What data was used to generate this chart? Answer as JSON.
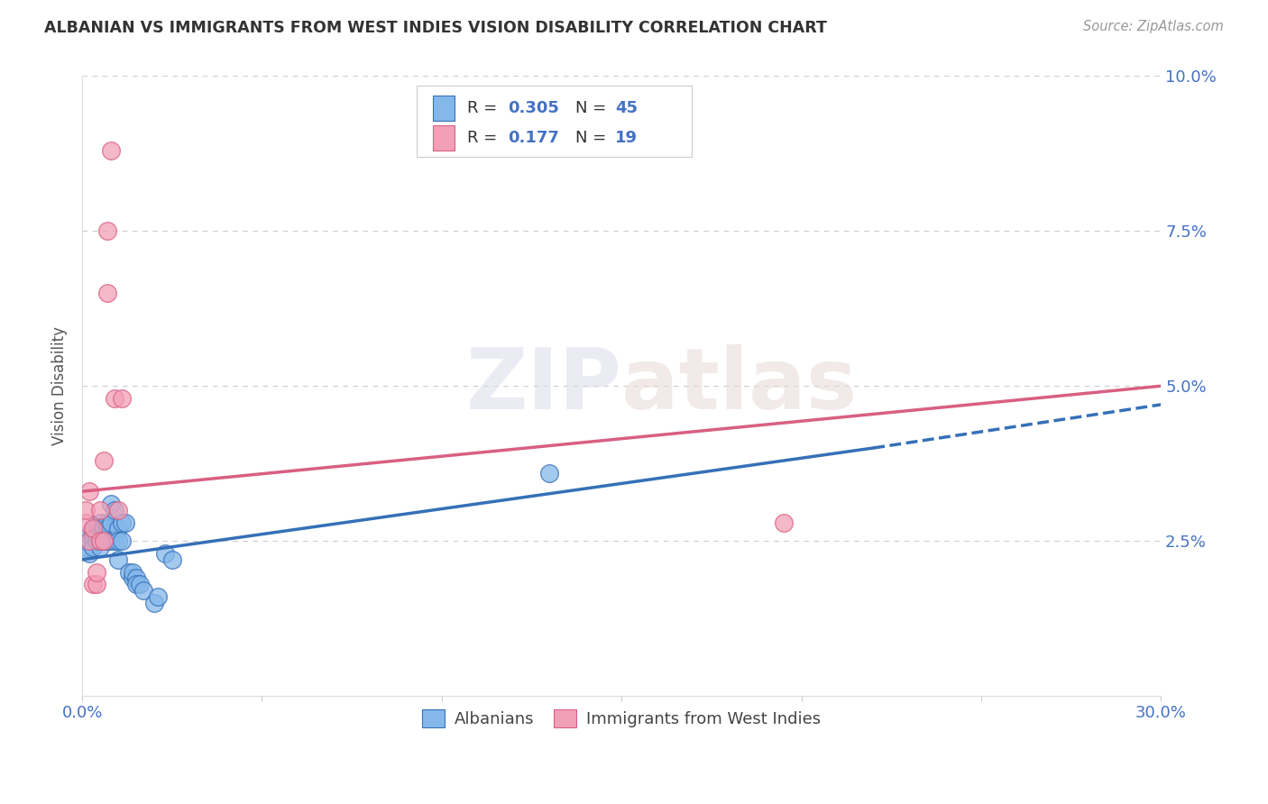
{
  "title": "ALBANIAN VS IMMIGRANTS FROM WEST INDIES VISION DISABILITY CORRELATION CHART",
  "source": "Source: ZipAtlas.com",
  "ylabel": "Vision Disability",
  "xlim": [
    0,
    0.3
  ],
  "ylim": [
    0,
    0.1
  ],
  "legend_R1": "0.305",
  "legend_N1": "45",
  "legend_R2": "0.177",
  "legend_N2": "19",
  "color_albanians": "#85B8EA",
  "color_west_indies": "#F2A0B8",
  "color_line_albanians": "#3570B8",
  "color_line_west_indies": "#D95F82",
  "background_color": "#FFFFFF",
  "watermark_zip": "ZIP",
  "watermark_atlas": "atlas",
  "legend_label1": "Albanians",
  "legend_label2": "Immigrants from West Indies",
  "albanians_x": [
    0.001,
    0.002,
    0.002,
    0.002,
    0.003,
    0.003,
    0.003,
    0.003,
    0.004,
    0.004,
    0.004,
    0.005,
    0.005,
    0.005,
    0.005,
    0.006,
    0.006,
    0.006,
    0.007,
    0.007,
    0.007,
    0.007,
    0.008,
    0.008,
    0.008,
    0.009,
    0.009,
    0.01,
    0.01,
    0.01,
    0.011,
    0.011,
    0.012,
    0.013,
    0.014,
    0.014,
    0.015,
    0.015,
    0.016,
    0.017,
    0.02,
    0.021,
    0.023,
    0.025,
    0.13
  ],
  "albanians_y": [
    0.024,
    0.026,
    0.025,
    0.023,
    0.026,
    0.025,
    0.027,
    0.024,
    0.025,
    0.027,
    0.026,
    0.024,
    0.027,
    0.025,
    0.028,
    0.025,
    0.027,
    0.025,
    0.026,
    0.025,
    0.028,
    0.027,
    0.025,
    0.031,
    0.028,
    0.025,
    0.03,
    0.027,
    0.025,
    0.022,
    0.028,
    0.025,
    0.028,
    0.02,
    0.019,
    0.02,
    0.019,
    0.018,
    0.018,
    0.017,
    0.015,
    0.016,
    0.023,
    0.022,
    0.036
  ],
  "west_indies_x": [
    0.001,
    0.001,
    0.002,
    0.002,
    0.003,
    0.003,
    0.004,
    0.004,
    0.005,
    0.005,
    0.006,
    0.006,
    0.007,
    0.007,
    0.008,
    0.009,
    0.01,
    0.011,
    0.195
  ],
  "west_indies_y": [
    0.028,
    0.03,
    0.033,
    0.025,
    0.027,
    0.018,
    0.018,
    0.02,
    0.025,
    0.03,
    0.025,
    0.038,
    0.075,
    0.065,
    0.088,
    0.048,
    0.03,
    0.048,
    0.028
  ],
  "line_alb_x0": 0.0,
  "line_alb_x1": 0.3,
  "line_wi_x0": 0.0,
  "line_wi_x1": 0.3,
  "line_alb_y0": 0.022,
  "line_alb_y1": 0.043,
  "line_wi_y0": 0.033,
  "line_wi_y1": 0.05,
  "line_alb_dash_x0": 0.22,
  "line_alb_dash_x1": 0.3,
  "line_alb_dash_y0": 0.04,
  "line_alb_dash_y1": 0.047
}
